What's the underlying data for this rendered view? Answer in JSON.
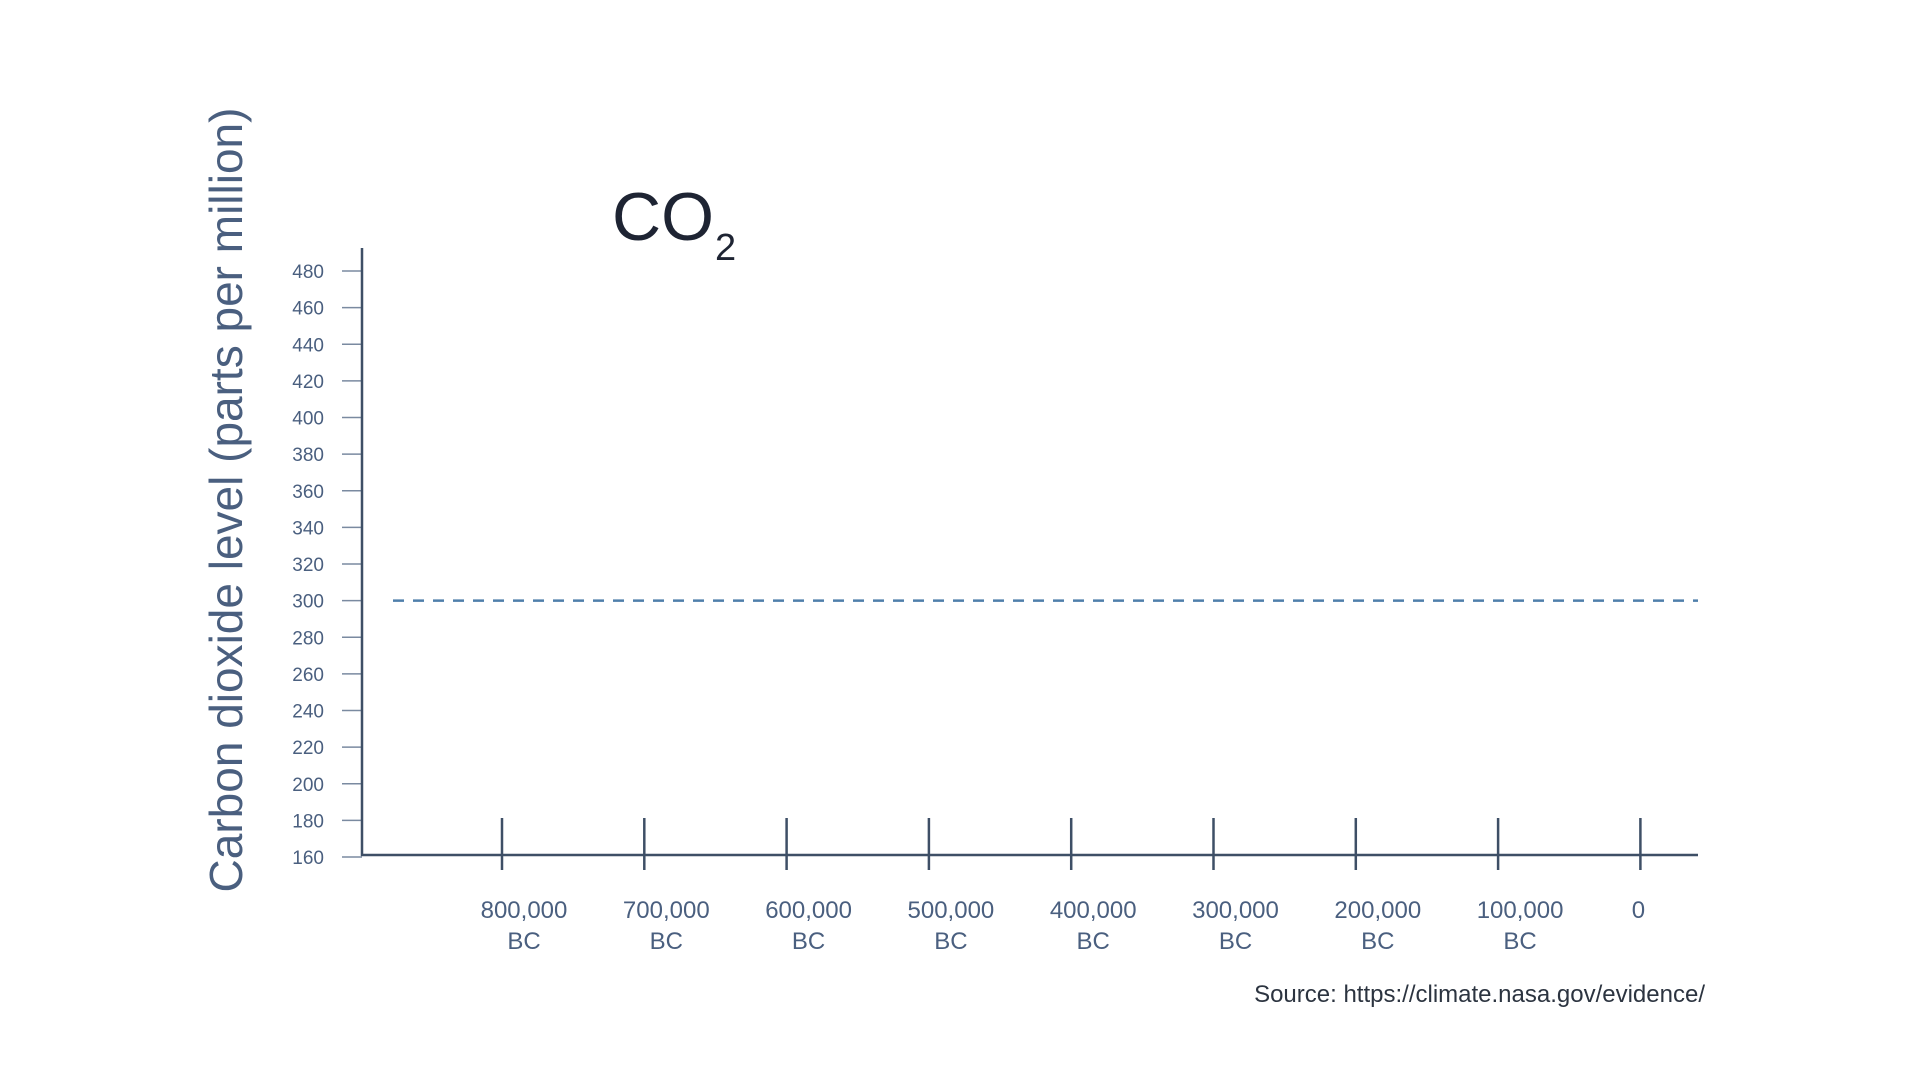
{
  "chart_data": {
    "type": "line",
    "title": "CO",
    "title_subscript": "2",
    "ylabel": "Carbon dioxide level (parts per million)",
    "xlabel": "",
    "ylim": [
      160,
      480
    ],
    "yticks": [
      160,
      180,
      200,
      220,
      240,
      260,
      280,
      300,
      320,
      340,
      360,
      380,
      400,
      420,
      440,
      460,
      480
    ],
    "xticks": [
      {
        "value": -800000,
        "line1": "800,000",
        "line2": "BC"
      },
      {
        "value": -700000,
        "line1": "700,000",
        "line2": "BC"
      },
      {
        "value": -600000,
        "line1": "600,000",
        "line2": "BC"
      },
      {
        "value": -500000,
        "line1": "500,000",
        "line2": "BC"
      },
      {
        "value": -400000,
        "line1": "400,000",
        "line2": "BC"
      },
      {
        "value": -300000,
        "line1": "300,000",
        "line2": "BC"
      },
      {
        "value": -200000,
        "line1": "200,000",
        "line2": "BC"
      },
      {
        "value": -100000,
        "line1": "100,000",
        "line2": "BC"
      },
      {
        "value": 0,
        "line1": "0",
        "line2": ""
      }
    ],
    "reference_line": {
      "y": 300,
      "style": "dashed",
      "color": "#4f7fab"
    },
    "series": []
  },
  "source": "Source: https://climate.nasa.gov/evidence/",
  "colors": {
    "axis": "#3e4f66",
    "tick_label": "#4a5f7f",
    "title": "#1e2433",
    "reference": "#4f7fab"
  }
}
